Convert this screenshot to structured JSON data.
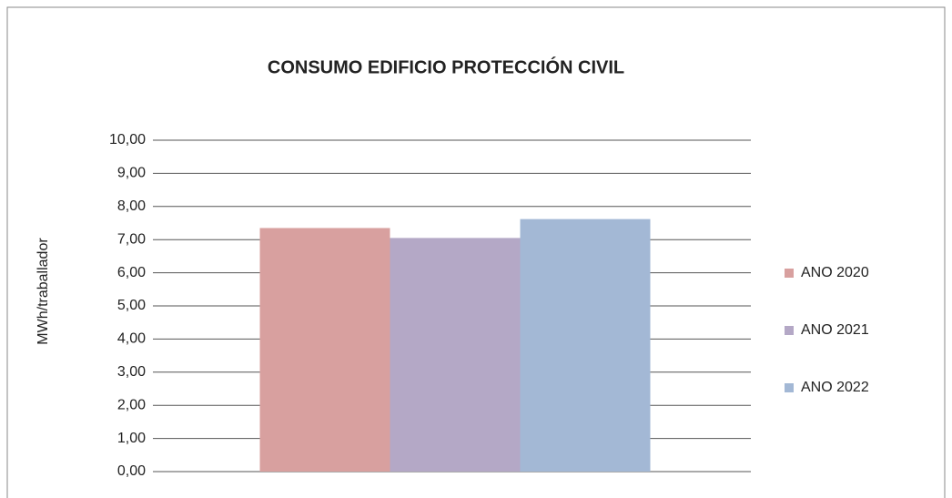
{
  "chart_data": {
    "type": "bar",
    "title": "CONSUMO EDIFICIO PROTECCIÓN CIVIL",
    "y_label": "MWh/traballador",
    "categories": [
      null
    ],
    "series": [
      {
        "name": "ANO 2020",
        "color": "#d8a09f",
        "values": [
          7.35
        ]
      },
      {
        "name": "ANO 2021",
        "color": "#b4a8c6",
        "values": [
          7.05
        ]
      },
      {
        "name": "ANO 2022",
        "color": "#a3b8d5",
        "values": [
          7.62
        ]
      }
    ],
    "ylim": [
      0,
      10
    ],
    "yticks": [
      {
        "value": 0,
        "label": "0,00"
      },
      {
        "value": 1,
        "label": "1,00"
      },
      {
        "value": 2,
        "label": "2,00"
      },
      {
        "value": 3,
        "label": "3,00"
      },
      {
        "value": 4,
        "label": "4,00"
      },
      {
        "value": 5,
        "label": "5,00"
      },
      {
        "value": 6,
        "label": "6,00"
      },
      {
        "value": 7,
        "label": "7,00"
      },
      {
        "value": 8,
        "label": "8,00"
      },
      {
        "value": 9,
        "label": "9,00"
      },
      {
        "value": 10,
        "label": "10,00"
      }
    ],
    "grid": true,
    "legend": "right"
  }
}
